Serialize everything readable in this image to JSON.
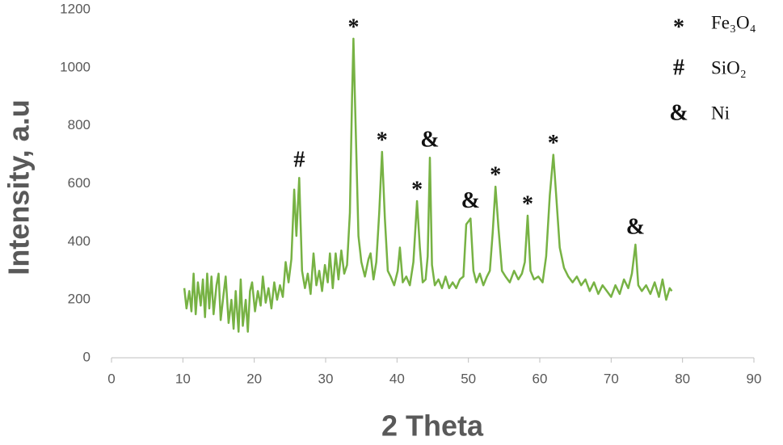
{
  "chart_data": {
    "type": "line",
    "xlabel": "2 Theta",
    "ylabel": "Intensity, a.u",
    "x": [
      10.2,
      10.5,
      10.9,
      11.2,
      11.5,
      11.8,
      12.1,
      12.5,
      12.8,
      13.1,
      13.4,
      13.7,
      14.0,
      14.3,
      14.7,
      15.0,
      15.3,
      15.7,
      16.0,
      16.4,
      16.8,
      17.1,
      17.4,
      17.8,
      18.1,
      18.4,
      18.8,
      19.1,
      19.4,
      19.7,
      20.1,
      20.5,
      20.9,
      21.2,
      21.6,
      22.0,
      22.4,
      22.8,
      23.2,
      23.6,
      24.0,
      24.4,
      24.8,
      25.2,
      25.6,
      25.9,
      26.3,
      26.7,
      27.1,
      27.5,
      27.9,
      28.3,
      28.7,
      29.1,
      29.5,
      29.9,
      30.3,
      30.6,
      31.0,
      31.4,
      31.8,
      32.2,
      32.6,
      33.0,
      33.4,
      33.7,
      33.9,
      34.2,
      34.6,
      35.0,
      35.5,
      36.0,
      36.3,
      36.7,
      37.1,
      37.5,
      37.9,
      38.3,
      38.7,
      39.1,
      39.6,
      40.1,
      40.4,
      40.8,
      41.3,
      41.8,
      42.3,
      42.8,
      43.2,
      43.6,
      44.0,
      44.3,
      44.6,
      44.9,
      45.3,
      45.8,
      46.3,
      46.8,
      47.3,
      47.8,
      48.3,
      48.8,
      49.3,
      49.7,
      50.0,
      50.3,
      50.7,
      51.1,
      51.6,
      52.1,
      52.6,
      53.0,
      53.4,
      53.8,
      54.2,
      54.7,
      55.2,
      55.8,
      56.4,
      57.0,
      57.5,
      57.9,
      58.3,
      58.7,
      59.2,
      59.8,
      60.4,
      60.9,
      61.4,
      61.9,
      62.3,
      62.8,
      63.4,
      64.0,
      64.6,
      65.2,
      65.8,
      66.4,
      67.0,
      67.6,
      68.2,
      68.8,
      69.4,
      70.0,
      70.6,
      71.2,
      71.8,
      72.4,
      72.9,
      73.4,
      73.8,
      74.3,
      74.9,
      75.5,
      76.1,
      76.7,
      77.2,
      77.7,
      78.2,
      78.5
    ],
    "series": [
      {
        "color": "#77b244",
        "values": [
          240,
          170,
          230,
          160,
          290,
          150,
          260,
          180,
          270,
          140,
          290,
          170,
          280,
          150,
          250,
          290,
          130,
          220,
          280,
          120,
          200,
          100,
          230,
          90,
          270,
          110,
          200,
          90,
          230,
          260,
          160,
          230,
          180,
          280,
          190,
          240,
          170,
          260,
          200,
          250,
          210,
          330,
          260,
          340,
          580,
          420,
          620,
          300,
          240,
          290,
          220,
          360,
          250,
          300,
          230,
          320,
          260,
          360,
          240,
          360,
          270,
          370,
          290,
          320,
          500,
          900,
          1100,
          800,
          420,
          330,
          280,
          340,
          360,
          270,
          330,
          500,
          710,
          480,
          300,
          280,
          250,
          300,
          380,
          260,
          280,
          250,
          330,
          540,
          380,
          260,
          270,
          350,
          690,
          320,
          250,
          270,
          240,
          280,
          240,
          260,
          240,
          270,
          280,
          460,
          470,
          480,
          300,
          260,
          290,
          250,
          280,
          300,
          430,
          590,
          450,
          300,
          280,
          260,
          300,
          270,
          290,
          330,
          490,
          300,
          270,
          280,
          260,
          350,
          560,
          700,
          560,
          380,
          310,
          280,
          260,
          280,
          250,
          270,
          230,
          260,
          220,
          250,
          230,
          210,
          250,
          220,
          270,
          240,
          290,
          390,
          250,
          230,
          250,
          220,
          260,
          210,
          270,
          200,
          240,
          230
        ]
      }
    ],
    "xlim": [
      0,
      90
    ],
    "xticks": [
      0,
      10,
      20,
      30,
      40,
      50,
      60,
      70,
      80,
      90
    ],
    "ylim": [
      0,
      1200
    ],
    "yticks": [
      0,
      200,
      400,
      600,
      800,
      1000,
      1200
    ],
    "annotations": [
      {
        "text": "#",
        "x": 26.3,
        "y": 620
      },
      {
        "text": "*",
        "x": 33.9,
        "y": 1100
      },
      {
        "text": "*",
        "x": 37.9,
        "y": 710
      },
      {
        "text": "*",
        "x": 42.8,
        "y": 540
      },
      {
        "text": "&",
        "x": 44.6,
        "y": 690
      },
      {
        "text": "&",
        "x": 50.3,
        "y": 480
      },
      {
        "text": "*",
        "x": 53.8,
        "y": 590
      },
      {
        "text": "*",
        "x": 58.3,
        "y": 490
      },
      {
        "text": "*",
        "x": 61.9,
        "y": 700
      },
      {
        "text": "&",
        "x": 73.4,
        "y": 390
      }
    ],
    "legend": [
      {
        "symbol": "*",
        "label": "Fe₃O₄"
      },
      {
        "symbol": "#",
        "label": "SiO₂"
      },
      {
        "symbol": "&",
        "label": "Ni"
      }
    ]
  }
}
